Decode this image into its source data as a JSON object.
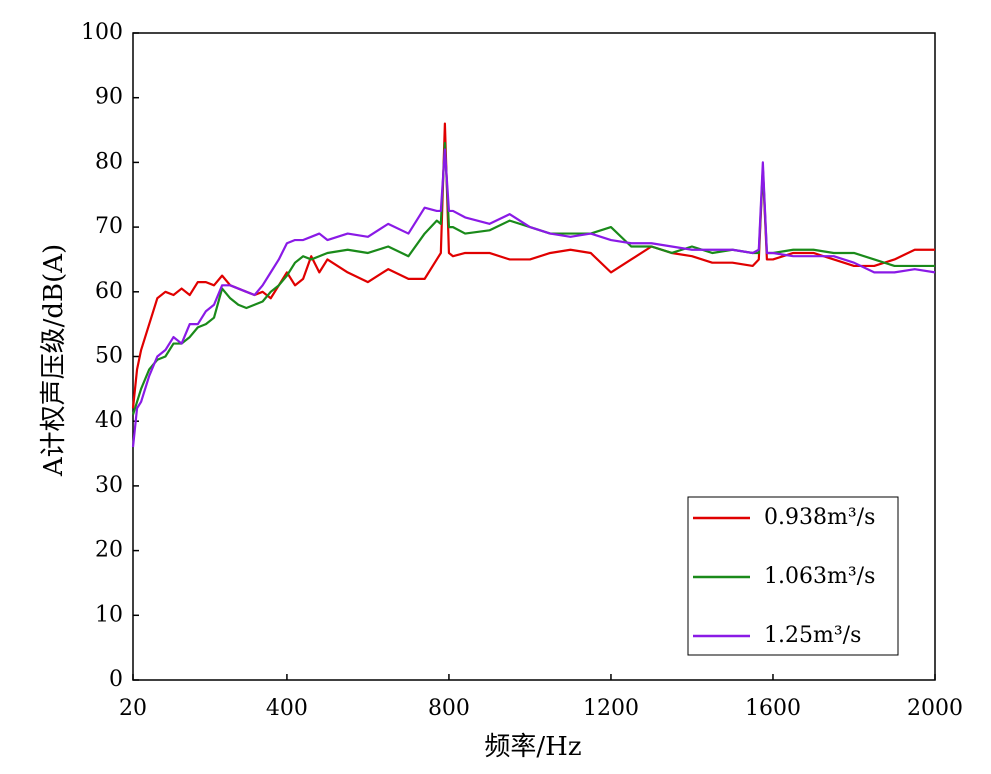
{
  "chart_data": {
    "type": "line",
    "xlabel": "频率/Hz",
    "ylabel": "A计权声压级/dB(A)",
    "xlim": [
      20,
      2000
    ],
    "xticks": [
      20,
      400,
      800,
      1200,
      1600,
      2000
    ],
    "ylim": [
      0,
      100
    ],
    "yticks": [
      0,
      10,
      20,
      30,
      40,
      50,
      60,
      70,
      80,
      90,
      100
    ],
    "grid": false,
    "legend": "lower right",
    "x": [
      20,
      30,
      40,
      60,
      80,
      100,
      120,
      140,
      160,
      180,
      200,
      220,
      240,
      260,
      280,
      300,
      320,
      340,
      360,
      380,
      400,
      420,
      440,
      460,
      480,
      500,
      550,
      600,
      650,
      700,
      740,
      770,
      780,
      790,
      800,
      810,
      840,
      900,
      950,
      1000,
      1050,
      1100,
      1150,
      1200,
      1250,
      1300,
      1350,
      1400,
      1450,
      1500,
      1550,
      1565,
      1575,
      1585,
      1600,
      1650,
      1700,
      1750,
      1800,
      1850,
      1900,
      1950,
      2000
    ],
    "series": [
      {
        "name": "0.938m³/s",
        "color": "#e00000",
        "values": [
          42,
          48,
          51,
          55,
          59,
          60,
          59.5,
          60.5,
          59.5,
          61.5,
          61.5,
          61,
          62.5,
          61,
          60.5,
          60,
          59.5,
          60,
          59,
          61,
          63,
          61,
          62,
          65.5,
          63,
          65,
          63,
          61.5,
          63.5,
          62,
          62,
          65,
          66,
          86,
          66,
          65.5,
          66,
          66,
          65,
          65,
          66,
          66.5,
          66,
          63,
          65,
          67,
          66,
          65.5,
          64.5,
          64.5,
          64,
          65,
          79,
          65,
          65,
          66,
          66,
          65,
          64,
          64,
          65,
          66.5,
          66.5
        ]
      },
      {
        "name": "1.063m³/s",
        "color": "#1a8a1a",
        "values": [
          41,
          43,
          45,
          48,
          49.5,
          50,
          52,
          52,
          53,
          54.5,
          55,
          56,
          60.5,
          59,
          58,
          57.5,
          58,
          58.5,
          60,
          61,
          62.5,
          64.5,
          65.5,
          65,
          65.5,
          66,
          66.5,
          66,
          67,
          65.5,
          69,
          71,
          70.5,
          83,
          70,
          70,
          69,
          69.5,
          71,
          70,
          69,
          69,
          69,
          70,
          67,
          67,
          66,
          67,
          66,
          66.5,
          66,
          66,
          79,
          66,
          66,
          66.5,
          66.5,
          66,
          66,
          65,
          64,
          64,
          64
        ]
      },
      {
        "name": "1.25m³/s",
        "color": "#8a1ae6",
        "values": [
          36,
          42,
          43,
          47,
          50,
          51,
          53,
          52,
          55,
          55,
          57,
          58,
          61,
          61,
          60.5,
          60,
          59.5,
          61,
          63,
          65,
          67.5,
          68,
          68,
          68.5,
          69,
          68,
          69,
          68.5,
          70.5,
          69,
          73,
          72.5,
          72.5,
          82,
          72.5,
          72.5,
          71.5,
          70.5,
          72,
          70,
          69,
          68.5,
          69,
          68,
          67.5,
          67.5,
          67,
          66.5,
          66.5,
          66.5,
          66,
          66.5,
          80,
          66,
          66,
          65.5,
          65.5,
          65.5,
          64.5,
          63,
          63,
          63.5,
          63
        ]
      }
    ]
  }
}
